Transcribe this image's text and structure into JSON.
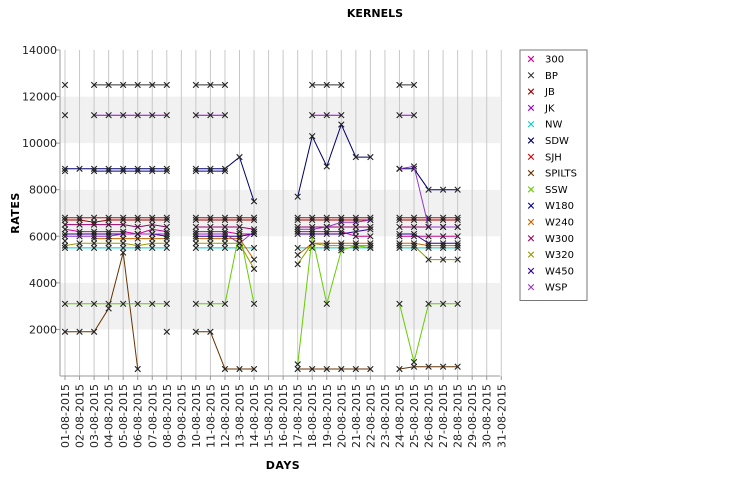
{
  "chart_data": {
    "type": "line",
    "title": "KERNELS",
    "xlabel": "DAYS",
    "ylabel": "RATES",
    "ylim": [
      0,
      14000
    ],
    "yticks": [
      2000,
      4000,
      6000,
      8000,
      10000,
      12000,
      14000
    ],
    "grid": "horizontal bands",
    "legend": "right",
    "categories": [
      "01-08-2015",
      "02-08-2015",
      "03-08-2015",
      "04-08-2015",
      "05-08-2015",
      "06-08-2015",
      "07-08-2015",
      "08-08-2015",
      "09-08-2015",
      "10-08-2015",
      "11-08-2015",
      "12-08-2015",
      "13-08-2015",
      "14-08-2015",
      "15-08-2015",
      "16-08-2015",
      "17-08-2015",
      "18-08-2015",
      "19-08-2015",
      "20-08-2015",
      "21-08-2015",
      "22-08-2015",
      "23-08-2015",
      "24-08-2015",
      "25-08-2015",
      "26-08-2015",
      "27-08-2015",
      "28-08-2015",
      "29-08-2015",
      "30-08-2015",
      "31-08-2015"
    ],
    "series": [
      {
        "name": "300",
        "color": "#cc0099",
        "values": [
          6300,
          6200,
          6200,
          6200,
          6200,
          6100,
          6300,
          6200,
          null,
          6200,
          6200,
          6200,
          6100,
          6100,
          null,
          null,
          6200,
          6200,
          6200,
          6200,
          6000,
          6000,
          null,
          6000,
          6000,
          6000,
          6000,
          6000,
          null,
          null,
          null
        ]
      },
      {
        "name": "BP",
        "color": "#333333",
        "values": [
          12500,
          null,
          12500,
          12500,
          12500,
          12500,
          12500,
          12500,
          null,
          12500,
          12500,
          12500,
          null,
          null,
          null,
          null,
          null,
          12500,
          12500,
          12500,
          null,
          null,
          null,
          12500,
          12500,
          null,
          null,
          null,
          null,
          null,
          null
        ]
      },
      {
        "name": "JB",
        "color": "#990000",
        "values": [
          6700,
          6700,
          6600,
          6700,
          6700,
          6700,
          6700,
          6700,
          null,
          6700,
          6700,
          6700,
          6700,
          6700,
          null,
          null,
          6700,
          6700,
          6700,
          6700,
          6700,
          6700,
          null,
          6700,
          6700,
          6700,
          6700,
          6700,
          null,
          null,
          null
        ]
      },
      {
        "name": "JK",
        "color": "#9900cc",
        "values": [
          11200,
          null,
          11200,
          11200,
          11200,
          11200,
          11200,
          11200,
          null,
          11200,
          11200,
          11200,
          null,
          null,
          null,
          null,
          null,
          11200,
          11200,
          11200,
          null,
          null,
          null,
          11200,
          11200,
          null,
          null,
          null,
          null,
          null,
          null
        ]
      },
      {
        "name": "NW",
        "color": "#00cccc",
        "values": [
          5500,
          5500,
          5500,
          5500,
          5500,
          5500,
          5500,
          5500,
          null,
          5500,
          5500,
          5500,
          5500,
          5500,
          null,
          null,
          5500,
          5500,
          5500,
          5500,
          5500,
          5500,
          null,
          5500,
          5500,
          5500,
          5500,
          5500,
          null,
          null,
          null
        ]
      },
      {
        "name": "SDW",
        "color": "#000066",
        "values": [
          8900,
          8900,
          8900,
          8900,
          8900,
          8900,
          8900,
          8900,
          null,
          8900,
          8900,
          8900,
          9400,
          7500,
          null,
          null,
          7700,
          10300,
          9000,
          10800,
          9400,
          9400,
          null,
          8900,
          8900,
          8000,
          8000,
          8000,
          null,
          null,
          null
        ]
      },
      {
        "name": "SJH",
        "color": "#cc0000",
        "values": [
          6800,
          6800,
          6800,
          6800,
          6800,
          6800,
          6800,
          6800,
          null,
          6800,
          6800,
          6800,
          6800,
          6800,
          null,
          null,
          6800,
          6800,
          6800,
          6800,
          6800,
          6800,
          null,
          6800,
          6800,
          6800,
          6800,
          6800,
          null,
          null,
          null
        ]
      },
      {
        "name": "SPILTS",
        "color": "#663300",
        "values": [
          1900,
          1900,
          1900,
          2900,
          5300,
          300,
          null,
          1900,
          null,
          1900,
          1900,
          300,
          300,
          300,
          null,
          null,
          300,
          300,
          300,
          300,
          300,
          300,
          null,
          300,
          400,
          400,
          400,
          400,
          null,
          null,
          null
        ]
      },
      {
        "name": "SSW",
        "color": "#66cc00",
        "values": [
          3100,
          3100,
          3100,
          3100,
          3100,
          3100,
          3100,
          3100,
          null,
          3100,
          3100,
          3100,
          6200,
          3100,
          null,
          null,
          500,
          6000,
          3100,
          5400,
          5600,
          5500,
          null,
          3100,
          600,
          3100,
          3100,
          3100,
          null,
          null,
          null
        ]
      },
      {
        "name": "W180",
        "color": "#000099",
        "values": [
          8800,
          null,
          8800,
          8800,
          8800,
          8800,
          8800,
          8800,
          null,
          8800,
          8800,
          8800,
          null,
          null,
          null,
          null,
          null,
          null,
          null,
          null,
          null,
          null,
          null,
          null,
          null,
          null,
          null,
          null,
          null,
          null,
          null
        ]
      },
      {
        "name": "W240",
        "color": "#cc6600",
        "values": [
          5800,
          null,
          5900,
          5900,
          5900,
          5900,
          5900,
          5900,
          null,
          5900,
          5900,
          5900,
          5900,
          5000,
          null,
          null,
          5200,
          5700,
          5700,
          5700,
          5700,
          5700,
          null,
          5700,
          5700,
          5600,
          5600,
          5600,
          null,
          null,
          null
        ]
      },
      {
        "name": "W300",
        "color": "#990066",
        "values": [
          6500,
          6500,
          6500,
          6500,
          6500,
          6400,
          6500,
          6400,
          null,
          6400,
          6400,
          6400,
          6400,
          6300,
          null,
          null,
          6400,
          6400,
          6400,
          6400,
          6400,
          6400,
          null,
          6400,
          6400,
          6400,
          6400,
          6400,
          null,
          null,
          null
        ]
      },
      {
        "name": "W320",
        "color": "#999900",
        "values": [
          5600,
          5700,
          5700,
          5700,
          5700,
          5600,
          5700,
          5700,
          null,
          5700,
          5700,
          5700,
          5700,
          4600,
          null,
          null,
          4800,
          5700,
          5600,
          5600,
          5600,
          5600,
          null,
          5600,
          5600,
          5000,
          5000,
          5000,
          null,
          null,
          null
        ]
      },
      {
        "name": "W450",
        "color": "#330099",
        "values": [
          6100,
          6100,
          6100,
          6100,
          6100,
          6100,
          6100,
          6000,
          null,
          6000,
          6000,
          6000,
          6000,
          6100,
          null,
          null,
          6100,
          6100,
          6100,
          6100,
          6200,
          6300,
          null,
          6100,
          6100,
          5700,
          5700,
          5700,
          null,
          null,
          null
        ]
      },
      {
        "name": "WSP",
        "color": "#9933cc",
        "values": [
          6000,
          6000,
          6000,
          6000,
          6100,
          6100,
          6100,
          6100,
          null,
          6100,
          6100,
          6100,
          5700,
          6200,
          null,
          null,
          6300,
          6300,
          6400,
          6600,
          6600,
          6700,
          null,
          8900,
          9000,
          6400,
          6400,
          6400,
          null,
          null,
          null
        ]
      }
    ]
  }
}
